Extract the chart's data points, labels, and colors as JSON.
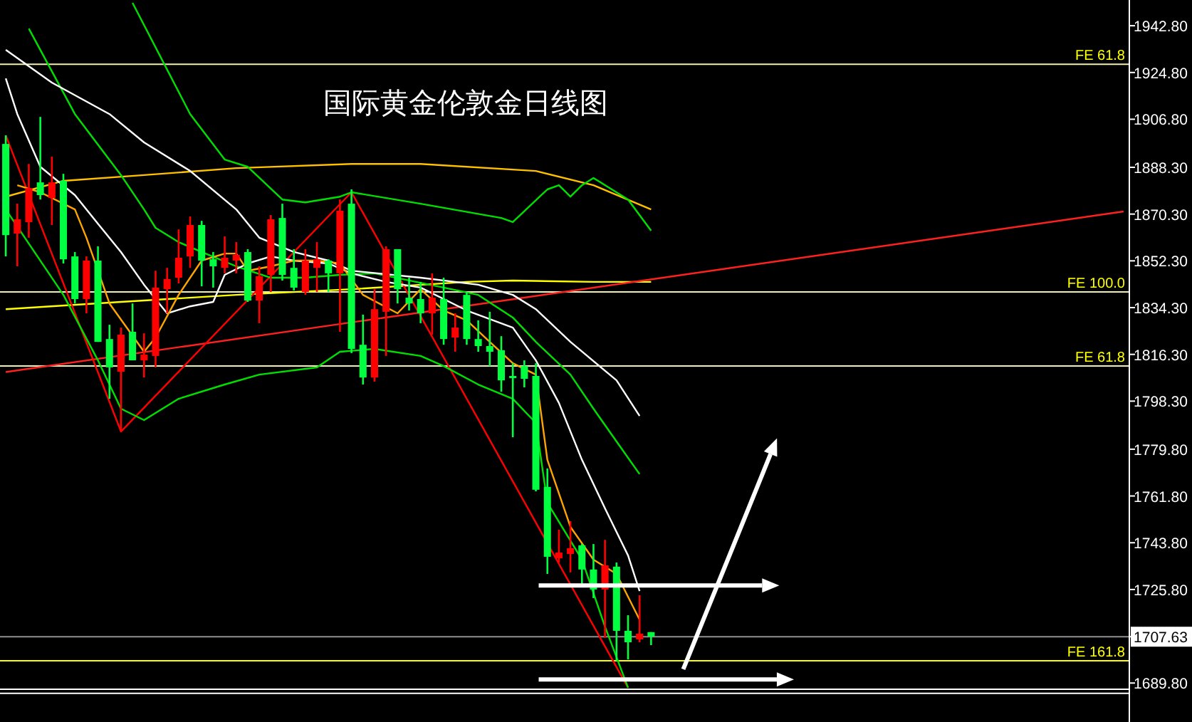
{
  "chart_data": {
    "type": "candlestick",
    "title": "国际黄金伦敦金日线图",
    "categories": [
      null,
      null,
      null,
      null,
      null,
      null,
      null,
      null,
      null,
      null,
      null,
      null,
      null,
      null,
      null,
      null,
      null,
      null,
      null,
      null,
      null,
      null,
      null,
      null,
      null,
      null,
      null,
      null,
      null,
      null,
      null,
      null,
      null,
      null,
      null,
      null,
      null,
      null,
      null,
      null,
      null,
      null,
      null,
      null,
      null,
      null,
      null,
      null,
      null,
      null,
      null,
      null,
      null,
      null,
      null,
      null,
      null,
      null,
      null,
      null,
      null,
      null,
      null,
      null,
      null,
      null,
      null,
      null,
      null,
      null,
      null,
      null,
      null,
      null,
      null,
      null,
      null,
      null,
      null,
      null,
      null,
      null,
      null,
      null,
      null,
      null,
      null,
      null,
      null,
      null,
      null,
      null,
      null,
      null,
      null,
      null,
      null,
      null
    ],
    "ohlc": [
      [
        1862.2,
        1900.6,
        1854.0,
        1897.3
      ],
      [
        1868.3,
        1874.3,
        1850.2,
        1862.8
      ],
      [
        1880.3,
        1889.6,
        1861.2,
        1867.2
      ],
      [
        1877.6,
        1907.7,
        1875.9,
        1882.5
      ],
      [
        1882.5,
        1892.4,
        1866.1,
        1876.5
      ],
      [
        1852.9,
        1885.8,
        1851.3,
        1883.1
      ],
      [
        1837.6,
        1855.7,
        1835.9,
        1854.0
      ],
      [
        1852.4,
        1854.0,
        1832.1,
        1837.6
      ],
      [
        1821.1,
        1857.9,
        1821.1,
        1852.4
      ],
      [
        1811.3,
        1827.7,
        1799.2,
        1822.2
      ],
      [
        1823.9,
        1826.6,
        1786.6,
        1809.6
      ],
      [
        1814.0,
        1835.9,
        1814.0,
        1825.0
      ],
      [
        1816.2,
        1824.4,
        1807.4,
        1814.0
      ],
      [
        1842.0,
        1848.5,
        1811.3,
        1815.7
      ],
      [
        1845.3,
        1849.6,
        1832.1,
        1841.4
      ],
      [
        1853.5,
        1864.4,
        1843.6,
        1845.8
      ],
      [
        1866.1,
        1869.4,
        1849.6,
        1854.0
      ],
      [
        1852.4,
        1867.7,
        1842.5,
        1866.1
      ],
      [
        1850.2,
        1855.7,
        1842.0,
        1852.9
      ],
      [
        1853.5,
        1861.7,
        1847.5,
        1849.6
      ],
      [
        1854.6,
        1859.5,
        1847.5,
        1852.4
      ],
      [
        1837.0,
        1856.8,
        1836.5,
        1855.7
      ],
      [
        1846.4,
        1850.2,
        1828.3,
        1837.0
      ],
      [
        1868.3,
        1869.9,
        1840.3,
        1846.9
      ],
      [
        1846.9,
        1874.3,
        1844.7,
        1868.8
      ],
      [
        1842.0,
        1856.8,
        1840.9,
        1849.6
      ],
      [
        1852.4,
        1856.8,
        1839.2,
        1840.3
      ],
      [
        1852.9,
        1859.5,
        1840.3,
        1849.6
      ],
      [
        1847.5,
        1852.9,
        1840.3,
        1852.4
      ],
      [
        1871.6,
        1875.9,
        1825.0,
        1847.5
      ],
      [
        1818.4,
        1879.8,
        1816.8,
        1874.3
      ],
      [
        1807.4,
        1831.6,
        1804.7,
        1820.0
      ],
      [
        1833.7,
        1841.4,
        1805.8,
        1807.4
      ],
      [
        1856.8,
        1857.9,
        1815.7,
        1832.7
      ],
      [
        1841.4,
        1856.8,
        1835.9,
        1856.8
      ],
      [
        1835.9,
        1845.8,
        1833.2,
        1838.1
      ],
      [
        1832.1,
        1844.2,
        1828.3,
        1837.6
      ],
      [
        1838.1,
        1847.5,
        1823.9,
        1832.1
      ],
      [
        1822.2,
        1845.8,
        1820.0,
        1837.6
      ],
      [
        1826.6,
        1832.1,
        1817.3,
        1822.8
      ],
      [
        1822.2,
        1840.3,
        1820.0,
        1839.2
      ],
      [
        1819.5,
        1829.4,
        1817.3,
        1822.2
      ],
      [
        1817.3,
        1832.7,
        1811.8,
        1819.5
      ],
      [
        1806.3,
        1823.3,
        1801.9,
        1817.9
      ],
      [
        1807.4,
        1812.9,
        1784.4,
        1808.0
      ],
      [
        1806.9,
        1814.0,
        1803.6,
        1811.8
      ],
      [
        1764.2,
        1812.9,
        1763.6,
        1808.0
      ],
      [
        1738.4,
        1772.4,
        1731.8,
        1765.3
      ],
      [
        1740.0,
        1748.8,
        1736.2,
        1737.8
      ],
      [
        1741.7,
        1752.1,
        1732.4,
        1739.5
      ],
      [
        1733.5,
        1743.3,
        1728.0,
        1742.8
      ],
      [
        1725.8,
        1743.3,
        1722.5,
        1733.5
      ],
      [
        1735.1,
        1744.9,
        1707.2,
        1725.8
      ],
      [
        1709.9,
        1736.2,
        1698.4,
        1734.6
      ],
      [
        1705.5,
        1715.9,
        1698.9,
        1709.9
      ],
      [
        1708.8,
        1723.6,
        1705.5,
        1706.6
      ],
      [
        1707.7,
        1709.4,
        1704.4,
        1709.4
      ],
      null,
      null,
      null,
      null,
      null,
      null,
      null,
      null,
      null,
      null,
      null,
      null,
      null,
      null,
      null,
      null,
      null,
      null,
      null,
      null,
      null,
      null,
      null,
      null,
      null,
      null,
      null,
      null,
      null,
      null,
      null,
      null,
      null,
      null,
      null,
      null,
      null,
      null,
      null,
      null,
      null
    ],
    "series": [
      {
        "type": "line",
        "color": "#ffc000",
        "values": [
          1877.0,
          null,
          null,
          null,
          null,
          1883.1,
          null,
          null,
          null,
          null,
          null,
          null,
          1885.3,
          null,
          null,
          null,
          null,
          null,
          null,
          null,
          1888.0,
          null,
          null,
          null,
          null,
          null,
          null,
          null,
          null,
          null,
          1889.6,
          null,
          null,
          null,
          null,
          null,
          1889.6,
          null,
          null,
          null,
          null,
          null,
          null,
          null,
          null,
          null,
          1886.9,
          null,
          null,
          null,
          null,
          1881.4,
          null,
          null,
          null,
          null,
          1872.1,
          null,
          null,
          null,
          null,
          null,
          null,
          null,
          null,
          null,
          null,
          null,
          null,
          null,
          null,
          null,
          null,
          null,
          null,
          null,
          null,
          null,
          null,
          null,
          null,
          null,
          null,
          null,
          null,
          null,
          null,
          null,
          null,
          null,
          null,
          null,
          null,
          null,
          null,
          null,
          null,
          null
        ]
      },
      {
        "type": "line",
        "color": "#ffff00",
        "values": [
          1833.7,
          null,
          null,
          null,
          null,
          null,
          null,
          null,
          null,
          null,
          1836.5,
          null,
          null,
          null,
          null,
          null,
          null,
          null,
          null,
          null,
          1839.2,
          null,
          null,
          null,
          null,
          null,
          null,
          null,
          null,
          null,
          1841.4,
          null,
          null,
          null,
          null,
          null,
          null,
          null,
          null,
          null,
          1844.2,
          null,
          null,
          null,
          1844.7,
          null,
          null,
          null,
          null,
          null,
          null,
          1844.2,
          null,
          null,
          null,
          null,
          1844.2,
          null,
          null,
          null,
          null,
          null,
          null,
          null,
          null,
          null,
          null,
          null,
          null,
          null,
          null,
          null,
          null,
          null,
          null,
          null,
          null,
          null,
          null,
          null,
          null,
          null,
          null,
          null,
          null,
          null,
          null,
          null,
          null,
          null,
          null,
          null,
          null,
          null,
          null,
          null,
          null,
          null
        ]
      },
      {
        "type": "line",
        "color": "#ff2020",
        "values": [
          1809.5,
          null,
          null,
          null,
          null,
          null,
          null,
          null,
          null,
          null,
          null,
          null,
          null,
          null,
          null,
          null,
          null,
          null,
          null,
          null,
          null,
          null,
          null,
          null,
          null,
          null,
          null,
          null,
          null,
          null,
          null,
          null,
          null,
          null,
          null,
          null,
          null,
          null,
          null,
          null,
          null,
          null,
          null,
          null,
          null,
          null,
          null,
          null,
          null,
          null,
          null,
          null,
          null,
          null,
          null,
          null,
          null,
          null,
          null,
          null,
          null,
          null,
          null,
          null,
          null,
          null,
          null,
          null,
          null,
          null,
          null,
          null,
          null,
          null,
          null,
          null,
          null,
          null,
          null,
          null,
          null,
          null,
          null,
          null,
          null,
          null,
          null,
          null,
          null,
          null,
          null,
          null,
          null,
          null,
          null,
          null,
          null,
          1871.3
        ]
      },
      {
        "type": "line",
        "color": "#ff0000",
        "values": [
          1900.6,
          null,
          null,
          null,
          null,
          null,
          null,
          null,
          null,
          null,
          1786.6,
          null,
          null,
          null,
          null,
          null,
          null,
          null,
          null,
          null,
          null,
          null,
          null,
          null,
          null,
          null,
          null,
          null,
          null,
          null,
          1878.7,
          null,
          null,
          null,
          null,
          null,
          null,
          null,
          null,
          null,
          null,
          null,
          null,
          null,
          null,
          null,
          null,
          null,
          null,
          null,
          null,
          null,
          null,
          null,
          1688.0,
          null,
          null,
          null,
          null,
          null,
          null,
          null,
          null,
          null,
          null,
          null,
          null,
          null,
          null,
          null,
          null,
          null,
          null,
          null,
          null,
          null,
          null,
          null,
          null,
          null,
          null,
          null,
          null,
          null,
          null,
          null,
          null,
          null,
          null,
          null,
          null,
          null,
          null,
          null,
          null,
          null,
          null,
          null
        ]
      },
      {
        "type": "line",
        "color": "#00e000",
        "values": [
          null,
          null,
          null,
          null,
          null,
          null,
          null,
          null,
          null,
          null,
          null,
          1951.6,
          null,
          null,
          null,
          null,
          1908.8,
          null,
          null,
          1891.3,
          null,
          1888.5,
          null,
          null,
          1875.9,
          null,
          1874.8,
          null,
          null,
          1877.0,
          1878.7,
          null,
          null,
          null,
          null,
          null,
          1874.3,
          null,
          null,
          null,
          null,
          null,
          null,
          1868.8,
          1867.2,
          null,
          null,
          1879.8,
          1881.4,
          1877.0,
          1881.4,
          1884.2,
          null,
          null,
          1875.9,
          null,
          1863.9,
          null,
          null,
          null,
          null,
          null,
          null,
          null,
          null,
          null,
          null,
          null,
          null,
          null,
          null,
          null,
          null,
          null,
          null,
          null,
          null,
          null,
          null,
          null,
          null,
          null,
          null,
          null,
          null,
          null,
          null,
          null,
          null,
          null,
          null,
          null,
          null,
          null,
          null,
          null,
          null,
          null
        ]
      },
      {
        "type": "line",
        "color": "#00e000",
        "values": [
          null,
          null,
          1941.7,
          null,
          null,
          null,
          1908.8,
          null,
          null,
          null,
          1885.3,
          null,
          1872.1,
          1865.0,
          null,
          1859.5,
          null,
          1855.7,
          null,
          null,
          1850.2,
          null,
          null,
          1845.8,
          null,
          null,
          1845.8,
          null,
          null,
          1846.9,
          null,
          null,
          1847.5,
          null,
          null,
          null,
          null,
          null,
          1842.0,
          null,
          null,
          1839.2,
          null,
          null,
          1830.5,
          null,
          1821.1,
          null,
          null,
          1808.5,
          null,
          1795.4,
          null,
          1782.8,
          null,
          1770.2,
          null,
          null,
          null,
          null,
          null,
          null,
          null,
          null,
          null,
          null,
          null,
          null,
          null,
          null,
          null,
          null,
          null,
          null,
          null,
          null,
          null,
          null,
          null,
          null,
          null,
          null,
          null,
          null,
          null,
          null,
          null,
          null,
          null,
          null,
          null,
          null,
          null,
          null,
          null,
          null,
          null,
          null
        ]
      },
      {
        "type": "line",
        "color": "#00e000",
        "values": [
          1872.1,
          null,
          null,
          null,
          null,
          1839.2,
          null,
          null,
          1814.0,
          null,
          1795.4,
          null,
          1791.0,
          null,
          null,
          1799.2,
          null,
          null,
          null,
          1804.7,
          null,
          null,
          1808.5,
          null,
          null,
          null,
          null,
          1811.3,
          null,
          1817.3,
          null,
          null,
          1818.4,
          null,
          null,
          null,
          1815.7,
          null,
          1811.8,
          null,
          null,
          1804.7,
          null,
          null,
          1799.2,
          null,
          1789.9,
          1759.2,
          null,
          null,
          1737.3,
          null,
          1711.5,
          null,
          1688.0,
          null,
          null,
          null,
          null,
          null,
          null,
          null,
          null,
          null,
          null,
          null,
          null,
          null,
          null,
          null,
          null,
          null,
          null,
          null,
          null,
          null,
          null,
          null,
          null,
          null,
          null,
          null,
          null,
          null,
          null,
          null,
          null,
          null,
          null,
          null,
          null,
          null,
          null,
          null,
          null,
          null,
          null,
          null
        ]
      },
      {
        "type": "line",
        "color": "#ffffff",
        "values": [
          1933.5,
          null,
          null,
          null,
          1920.9,
          null,
          null,
          null,
          null,
          1908.8,
          null,
          null,
          1897.9,
          null,
          null,
          null,
          1886.9,
          null,
          null,
          null,
          1872.1,
          null,
          1861.2,
          null,
          null,
          1855.7,
          null,
          null,
          1852.4,
          null,
          1848.5,
          null,
          null,
          null,
          null,
          null,
          1845.8,
          null,
          null,
          null,
          null,
          1843.1,
          null,
          null,
          1839.2,
          null,
          1833.7,
          null,
          null,
          1821.1,
          null,
          null,
          null,
          1806.3,
          null,
          1792.6,
          null,
          null,
          null,
          null,
          null,
          null,
          null,
          null,
          null,
          null,
          null,
          null,
          null,
          null,
          null,
          null,
          null,
          null,
          null,
          null,
          null,
          null,
          null,
          null,
          null,
          null,
          null,
          null,
          null,
          null,
          null,
          null,
          null,
          null,
          null,
          null,
          null,
          null,
          null,
          null,
          null,
          null
        ]
      },
      {
        "type": "line",
        "color": "#ffffff",
        "values": [
          1922.5,
          1908.8,
          null,
          1888.5,
          null,
          null,
          1877.6,
          null,
          1866.6,
          null,
          1855.7,
          null,
          1843.1,
          null,
          1832.1,
          null,
          1834.8,
          null,
          1836.5,
          1846.9,
          null,
          1851.3,
          null,
          1854.0,
          null,
          1852.4,
          null,
          null,
          1851.3,
          null,
          1847.5,
          null,
          null,
          1844.2,
          null,
          null,
          1842.0,
          null,
          null,
          null,
          1833.2,
          null,
          null,
          null,
          1826.6,
          null,
          1814.0,
          null,
          1797.6,
          null,
          1775.7,
          null,
          1757.0,
          null,
          1738.9,
          1725.2,
          null,
          null,
          null,
          null,
          null,
          null,
          null,
          null,
          null,
          null,
          null,
          null,
          null,
          null,
          null,
          null,
          null,
          null,
          null,
          null,
          null,
          null,
          null,
          null,
          null,
          null,
          null,
          null,
          null,
          null,
          null,
          null,
          null,
          null,
          null,
          null,
          null,
          null,
          null,
          null,
          null,
          null
        ]
      },
      {
        "type": "line",
        "color": "#ffa500",
        "values": [
          null,
          1881.4,
          null,
          1878.7,
          null,
          null,
          1872.1,
          1861.2,
          null,
          1835.9,
          null,
          null,
          1817.3,
          1822.8,
          null,
          1839.2,
          null,
          1852.4,
          null,
          1855.1,
          1855.1,
          1848.5,
          null,
          1850.2,
          null,
          1852.4,
          null,
          1852.4,
          null,
          1851.3,
          null,
          1839.2,
          null,
          null,
          1832.1,
          null,
          1841.4,
          null,
          1833.2,
          null,
          1829.4,
          null,
          1821.1,
          null,
          1812.9,
          null,
          1808.5,
          1775.7,
          null,
          1749.9,
          null,
          1737.3,
          null,
          1731.8,
          null,
          1714.2,
          null,
          null,
          null,
          null,
          null,
          null,
          null,
          null,
          null,
          null,
          null,
          null,
          null,
          null,
          null,
          null,
          null,
          null,
          null,
          null,
          null,
          null,
          null,
          null,
          null,
          null,
          null,
          null,
          null,
          null,
          null,
          null,
          null,
          null,
          null,
          null,
          null,
          null,
          null,
          null,
          null,
          null
        ]
      }
    ],
    "ref_lines": [
      {
        "axis": "y",
        "value": 1928.0,
        "label": "FE 61.8",
        "color": "#f0f0b0"
      },
      {
        "axis": "y",
        "value": 1840.3,
        "label": "FE 100.0",
        "color": "#f0f0b0"
      },
      {
        "axis": "y",
        "value": 1811.8,
        "label": "FE 61.8",
        "color": "#f0f0b0"
      },
      {
        "axis": "y",
        "value": 1707.63,
        "color": "#909090"
      },
      {
        "axis": "y",
        "value": 1698.4,
        "label": "FE 161.8",
        "color": "#ffff00"
      },
      {
        "axis": "y",
        "value": 1687.4,
        "color": "#ffffff"
      },
      {
        "axis": "y",
        "value": 1685.8,
        "color": "#ffffff"
      }
    ],
    "ylim": [
      1674.8,
      1952.7
    ],
    "yticks": [
      {
        "value": 1942.8,
        "label": "1942.80"
      },
      {
        "value": 1924.8,
        "label": "1924.80"
      },
      {
        "value": 1906.8,
        "label": "1906.80"
      },
      {
        "value": 1888.3,
        "label": "1888.30"
      },
      {
        "value": 1870.3,
        "label": "1870.30"
      },
      {
        "value": 1852.3,
        "label": "1852.30"
      },
      {
        "value": 1834.3,
        "label": "1834.30"
      },
      {
        "value": 1816.3,
        "label": "1816.30"
      },
      {
        "value": 1798.3,
        "label": "1798.30"
      },
      {
        "value": 1779.8,
        "label": "1779.80"
      },
      {
        "value": 1761.8,
        "label": "1761.80"
      },
      {
        "value": 1743.8,
        "label": "1743.80"
      },
      {
        "value": 1725.8,
        "label": "1725.80"
      },
      {
        "value": 1707.63,
        "label": "1707.63"
      },
      {
        "value": 1689.8,
        "label": "1689.80"
      }
    ],
    "tick_labels": "y"
  }
}
